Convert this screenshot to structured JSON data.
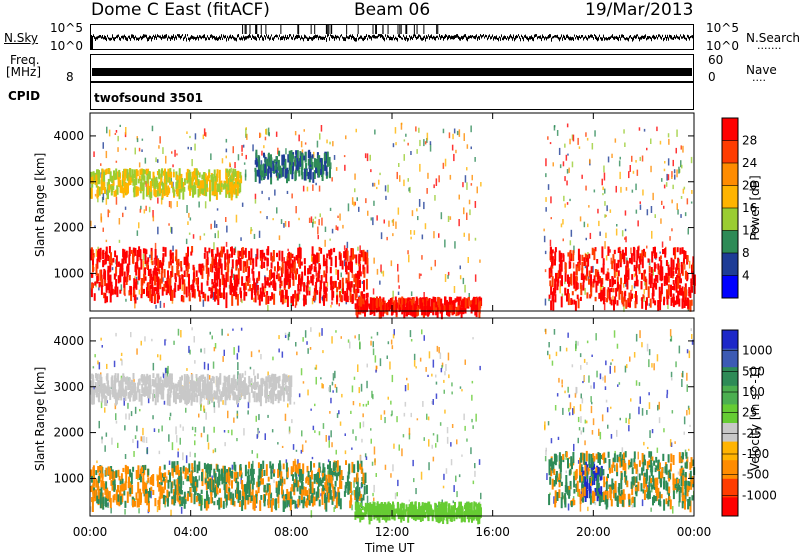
{
  "header": {
    "station": "Dome C East (fitACF)",
    "beam": "Beam 06",
    "date": "19/Mar/2013"
  },
  "nsky_panel": {
    "left_label": "N.Sky",
    "right_label": "N.Search",
    "right_dots": ".......",
    "left_ticks": [
      "10^5",
      "10^0"
    ],
    "right_ticks": [
      "10^5",
      "10^0"
    ]
  },
  "freq_panel": {
    "left_label_top": "Freq.",
    "left_label_unit": "[MHz]",
    "right_label": "Nave",
    "right_dots": "....",
    "left_ticks": [
      "8"
    ],
    "right_ticks": [
      "60",
      "0"
    ]
  },
  "cpid_panel": {
    "label": "CPID",
    "program": "twofsound 3501"
  },
  "power_colorbar": {
    "title": "Power [dB]",
    "ticks": [
      "28",
      "24",
      "20",
      "16",
      "12",
      "8",
      "4"
    ],
    "colors": [
      "#ff0000",
      "#ff3c00",
      "#ff8c00",
      "#ffb400",
      "#9acd32",
      "#2e8b57",
      "#1e3c96",
      "#0000ff"
    ]
  },
  "velocity_colorbar": {
    "title": "Velocity [m s^-1]",
    "ticks": [
      "1000",
      "500",
      "100",
      "25",
      "-25",
      "-100",
      "-500",
      "-1000"
    ],
    "colors": [
      "#1e28c8",
      "#3c5ab4",
      "#2e8b57",
      "#4caf50",
      "#66cc33",
      "#c8c8c8",
      "#ffb400",
      "#ff8c00",
      "#ff3c00",
      "#ff0000"
    ]
  },
  "chart_data": {
    "type": "heatmap",
    "ylabel": "Slant Range [km]",
    "xlabel": "Time UT",
    "x_ticks": [
      "00:00",
      "04:00",
      "08:00",
      "12:00",
      "16:00",
      "20:00",
      "00:00"
    ],
    "y_ticks": [
      "1000",
      "2000",
      "3000",
      "4000"
    ],
    "x_range_hours": [
      0,
      24
    ],
    "y_range_km": [
      180,
      4500
    ],
    "power_echo_regions": [
      {
        "t_start": 0.0,
        "t_end": 11.0,
        "r_min": 500,
        "r_max": 1600,
        "value_db": 28
      },
      {
        "t_start": 10.5,
        "t_end": 15.5,
        "r_min": 250,
        "r_max": 500,
        "value_db": 28
      },
      {
        "t_start": 18.2,
        "t_end": 24.0,
        "r_min": 400,
        "r_max": 1600,
        "value_db": 26
      },
      {
        "t_start": 0.0,
        "t_end": 6.0,
        "r_min": 2800,
        "r_max": 3300,
        "value_db": 16
      },
      {
        "t_start": 6.5,
        "t_end": 9.5,
        "r_min": 3200,
        "r_max": 3700,
        "value_db": 10
      }
    ],
    "velocity_echo_regions": [
      {
        "t_start": 0.0,
        "t_end": 3.0,
        "r_min": 500,
        "r_max": 1300,
        "value_ms": -100
      },
      {
        "t_start": 3.0,
        "t_end": 11.0,
        "r_min": 500,
        "r_max": 1400,
        "value_ms": 100
      },
      {
        "t_start": 10.5,
        "t_end": 15.5,
        "r_min": 250,
        "r_max": 500,
        "value_ms": 25
      },
      {
        "t_start": 19.5,
        "t_end": 20.3,
        "r_min": 700,
        "r_max": 1400,
        "value_ms": 1000
      },
      {
        "t_start": 18.2,
        "t_end": 24.0,
        "r_min": 500,
        "r_max": 1600,
        "value_ms": 100
      },
      {
        "t_start": 0.0,
        "t_end": 8.0,
        "r_min": 2800,
        "r_max": 3300,
        "value_ms": 0
      }
    ]
  }
}
